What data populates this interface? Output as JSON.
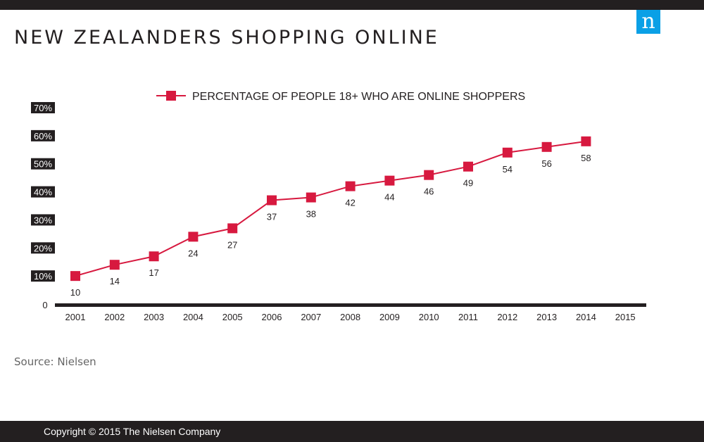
{
  "header": {
    "title": "NEW ZEALANDERS SHOPPING ONLINE",
    "logo_letter": "n",
    "logo_color": "#0aa0e6"
  },
  "chart_data": {
    "type": "line",
    "title": "NEW ZEALANDERS SHOPPING ONLINE",
    "categories": [
      "2001",
      "2002",
      "2003",
      "2004",
      "2005",
      "2006",
      "2007",
      "2008",
      "2009",
      "2010",
      "2011",
      "2012",
      "2013",
      "2014",
      "2015"
    ],
    "series": [
      {
        "name": "PERCENTAGE OF PEOPLE 18+ WHO ARE ONLINE SHOPPERS",
        "values": [
          10,
          14,
          17,
          24,
          27,
          37,
          38,
          42,
          44,
          46,
          49,
          54,
          56,
          58,
          null
        ],
        "color": "#d7193f"
      }
    ],
    "y_ticks": [
      "0",
      "10%",
      "20%",
      "30%",
      "40%",
      "50%",
      "60%",
      "70%"
    ],
    "ylim": [
      0,
      70
    ],
    "xlabel": "",
    "ylabel": "",
    "legend_position": "top",
    "grid": false
  },
  "source": "Source: Nielsen",
  "footer": {
    "copyright": "Copyright © 2015 The Nielsen Company"
  },
  "colors": {
    "dark": "#231f20",
    "series": "#d7193f",
    "source_text": "#666666"
  }
}
